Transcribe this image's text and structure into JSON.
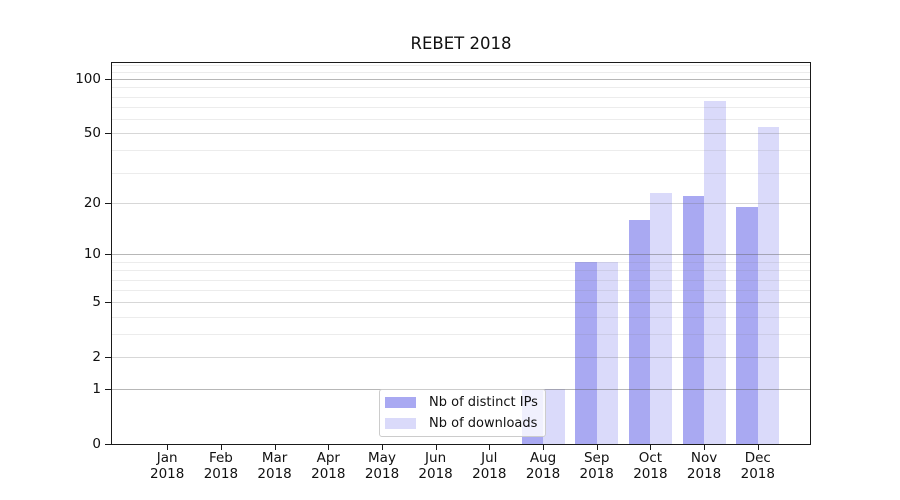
{
  "title": "REBET 2018",
  "chart_data": {
    "type": "bar",
    "title": "REBET 2018",
    "categories": [
      "Jan 2018",
      "Feb 2018",
      "Mar 2018",
      "Apr 2018",
      "May 2018",
      "Jun 2018",
      "Jul 2018",
      "Aug 2018",
      "Sep 2018",
      "Oct 2018",
      "Nov 2018",
      "Dec 2018"
    ],
    "series": [
      {
        "name": "Nb of distinct IPs",
        "color": "#a9a9f2",
        "values": [
          0,
          0,
          0,
          0,
          0,
          0,
          0,
          1,
          9,
          16,
          22,
          19
        ]
      },
      {
        "name": "Nb of downloads",
        "color": "#dadafa",
        "values": [
          0,
          0,
          0,
          0,
          0,
          0,
          0,
          1,
          9,
          23,
          76,
          54
        ]
      }
    ],
    "xlabel": "",
    "ylabel": "",
    "yscale": "symlog-log1p",
    "yticks": [
      0,
      1,
      2,
      5,
      10,
      20,
      50,
      100
    ],
    "decade_grid_values": [
      1,
      10,
      100
    ],
    "submajor_grid_values": [
      2,
      5,
      20,
      50
    ],
    "minor_grid_values": [
      3,
      4,
      6,
      7,
      8,
      9,
      30,
      40,
      60,
      70,
      80,
      90,
      110,
      120
    ],
    "ylim": [
      0,
      123
    ],
    "grid": true,
    "legend": {
      "position": "lower-center",
      "items": [
        {
          "label": "Nb of distinct IPs",
          "color": "#a9a9f2"
        },
        {
          "label": "Nb of downloads",
          "color": "#dadafa"
        }
      ]
    }
  },
  "colors": {
    "axis": "#1a1a1a",
    "grid_decade": "#b4b4b4",
    "grid_submajor": "#d2d2d2",
    "grid_minor": "#e9e9e9",
    "legend_border": "#cccccc"
  }
}
